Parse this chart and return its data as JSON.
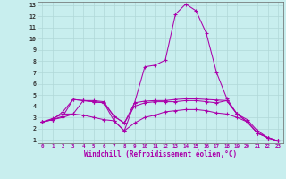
{
  "xlabel": "Windchill (Refroidissement éolien,°C)",
  "bg_color": "#c8eeee",
  "grid_color": "#b0d8d8",
  "line_color": "#aa00aa",
  "xlim": [
    -0.5,
    23.5
  ],
  "ylim": [
    0.7,
    13.3
  ],
  "xticks": [
    0,
    1,
    2,
    3,
    4,
    5,
    6,
    7,
    8,
    9,
    10,
    11,
    12,
    13,
    14,
    15,
    16,
    17,
    18,
    19,
    20,
    21,
    22,
    23
  ],
  "yticks": [
    1,
    2,
    3,
    4,
    5,
    6,
    7,
    8,
    9,
    10,
    11,
    12,
    13
  ],
  "series": [
    [
      2.6,
      2.8,
      3.1,
      4.6,
      4.5,
      4.4,
      4.3,
      2.7,
      1.8,
      4.3,
      7.5,
      7.65,
      8.1,
      12.2,
      13.1,
      12.5,
      10.5,
      7.0,
      4.7,
      3.3,
      2.6,
      1.6,
      1.2,
      0.9
    ],
    [
      2.6,
      2.9,
      3.3,
      3.3,
      4.5,
      4.5,
      4.4,
      3.1,
      2.5,
      4.3,
      4.45,
      4.5,
      4.5,
      4.6,
      4.65,
      4.65,
      4.6,
      4.55,
      4.5,
      3.3,
      2.6,
      1.6,
      1.2,
      0.9
    ],
    [
      2.6,
      2.8,
      3.5,
      4.6,
      4.5,
      4.4,
      4.3,
      3.1,
      2.5,
      4.0,
      4.3,
      4.4,
      4.4,
      4.4,
      4.5,
      4.5,
      4.4,
      4.3,
      4.5,
      3.3,
      2.8,
      1.8,
      1.2,
      0.9
    ],
    [
      2.6,
      2.8,
      3.0,
      3.3,
      3.2,
      3.0,
      2.8,
      2.7,
      1.8,
      2.5,
      3.0,
      3.2,
      3.5,
      3.6,
      3.7,
      3.7,
      3.6,
      3.4,
      3.3,
      3.0,
      2.6,
      1.6,
      1.2,
      0.9
    ]
  ]
}
